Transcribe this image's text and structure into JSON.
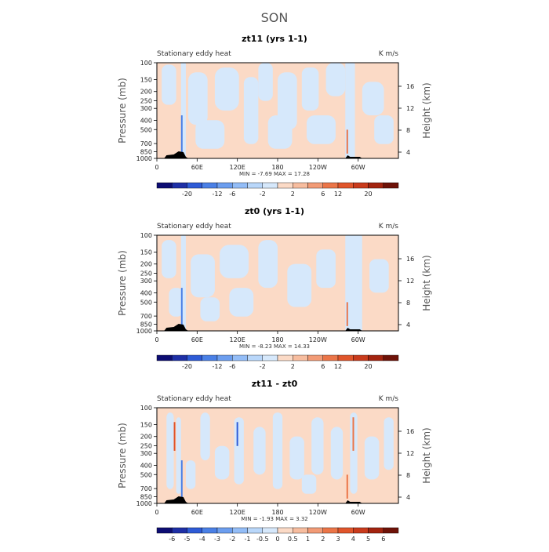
{
  "main_title": "SON",
  "colors": {
    "background_fill": "#fbdac6",
    "negative_fill": "#d6e8fb",
    "terrain": "#000000"
  },
  "chart_data": [
    {
      "type": "heatmap",
      "title": "zt11 (yrs 1-1)",
      "left_label": "Stationary eddy heat",
      "right_label": "K m/s",
      "ylabel": "Pressure (mb)",
      "y2label": "Height (km)",
      "x_ticks": [
        "0",
        "60E",
        "120E",
        "180",
        "120W",
        "60W"
      ],
      "x_tick_lon": [
        0,
        60,
        120,
        180,
        240,
        300
      ],
      "xlim": [
        0,
        360
      ],
      "y_ticks": [
        "100",
        "150",
        "200",
        "250",
        "300",
        "400",
        "500",
        "700",
        "850",
        "1000"
      ],
      "y_tick_p": [
        100,
        150,
        200,
        250,
        300,
        400,
        500,
        700,
        850,
        1000
      ],
      "ylim": [
        1000,
        100
      ],
      "y_scale": "log",
      "y2_ticks": [
        "4",
        "8",
        "12",
        "16"
      ],
      "stats_text": "MIN = -7.69 MAX = 17.28",
      "colorbar_ticks": [
        "-20",
        "-12",
        "-6",
        "-2",
        "2",
        "6",
        "12",
        "20"
      ],
      "colorbar_colors": [
        "#0d0d73",
        "#1e2fa6",
        "#2e5bd6",
        "#4a80e6",
        "#6c9eef",
        "#93bdf7",
        "#b9d7fa",
        "#d6e8fb",
        "#fbdac6",
        "#f7bd9f",
        "#f29b76",
        "#eb7548",
        "#e0552b",
        "#c93b1c",
        "#a3240f",
        "#6e1208"
      ]
    },
    {
      "type": "heatmap",
      "title": "zt0 (yrs 1-1)",
      "left_label": "Stationary eddy heat",
      "right_label": "K m/s",
      "ylabel": "Pressure (mb)",
      "y2label": "Height (km)",
      "x_ticks": [
        "0",
        "60E",
        "120E",
        "180",
        "120W",
        "60W"
      ],
      "x_tick_lon": [
        0,
        60,
        120,
        180,
        240,
        300
      ],
      "xlim": [
        0,
        360
      ],
      "y_ticks": [
        "100",
        "150",
        "200",
        "250",
        "300",
        "400",
        "500",
        "700",
        "850",
        "1000"
      ],
      "y_tick_p": [
        100,
        150,
        200,
        250,
        300,
        400,
        500,
        700,
        850,
        1000
      ],
      "ylim": [
        1000,
        100
      ],
      "y_scale": "log",
      "y2_ticks": [
        "4",
        "8",
        "12",
        "16"
      ],
      "stats_text": "MIN = -8.23 MAX = 14.33",
      "colorbar_ticks": [
        "-20",
        "-12",
        "-6",
        "-2",
        "2",
        "6",
        "12",
        "20"
      ],
      "colorbar_colors": [
        "#0d0d73",
        "#1e2fa6",
        "#2e5bd6",
        "#4a80e6",
        "#6c9eef",
        "#93bdf7",
        "#b9d7fa",
        "#d6e8fb",
        "#fbdac6",
        "#f7bd9f",
        "#f29b76",
        "#eb7548",
        "#e0552b",
        "#c93b1c",
        "#a3240f",
        "#6e1208"
      ]
    },
    {
      "type": "heatmap",
      "title": "zt11 - zt0",
      "left_label": "Stationary eddy heat",
      "right_label": "K m/s",
      "ylabel": "Pressure (mb)",
      "y2label": "Height (km)",
      "x_ticks": [
        "0",
        "60E",
        "120E",
        "180",
        "120W",
        "60W"
      ],
      "x_tick_lon": [
        0,
        60,
        120,
        180,
        240,
        300
      ],
      "xlim": [
        0,
        360
      ],
      "y_ticks": [
        "100",
        "150",
        "200",
        "250",
        "300",
        "400",
        "500",
        "700",
        "850",
        "1000"
      ],
      "y_tick_p": [
        100,
        150,
        200,
        250,
        300,
        400,
        500,
        700,
        850,
        1000
      ],
      "ylim": [
        1000,
        100
      ],
      "y_scale": "log",
      "y2_ticks": [
        "4",
        "8",
        "12",
        "16"
      ],
      "stats_text": "MIN = -1.93 MAX = 3.32",
      "colorbar_ticks": [
        "-6",
        "-5",
        "-4",
        "-3",
        "-2",
        "-1",
        "-0.5",
        "0",
        "0.5",
        "1",
        "2",
        "3",
        "4",
        "5",
        "6"
      ],
      "colorbar_colors": [
        "#0d0d73",
        "#1e2fa6",
        "#2e5bd6",
        "#4a80e6",
        "#6c9eef",
        "#93bdf7",
        "#b9d7fa",
        "#d6e8fb",
        "#fbdac6",
        "#f7bd9f",
        "#f29b76",
        "#eb7548",
        "#e0552b",
        "#c93b1c",
        "#a3240f",
        "#6e1208"
      ]
    }
  ]
}
